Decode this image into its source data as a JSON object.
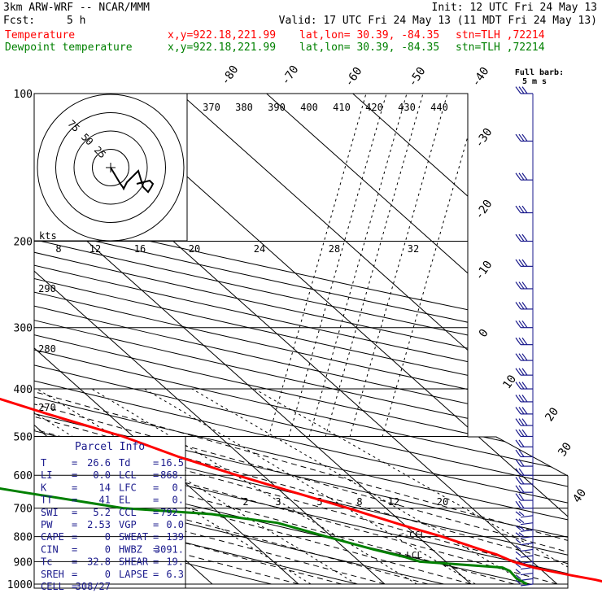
{
  "header": {
    "model": "3km ARW-WRF -- NCAR/MMM",
    "init": "Init: 12 UTC Fri 24 May 13",
    "fcst_label": "Fcst:",
    "fcst_value": "5 h",
    "valid": "Valid: 17 UTC Fri 24 May 13 (11 MDT Fri 24 May 13)",
    "temperature": {
      "label": "Temperature",
      "xy": "x,y=922.18,221.99",
      "latlon": "lat,lon= 30.39, -84.35",
      "stn": "stn=TLH ,72214",
      "color": "#ff0000"
    },
    "dewpoint": {
      "label": "Dewpoint temperature",
      "xy": "x,y=922.18,221.99",
      "latlon": "lat,lon= 30.39, -84.35",
      "stn": "stn=TLH ,72214",
      "color": "#008000"
    }
  },
  "barb_legend": {
    "line1": "Full barb:",
    "line2": "5 m s"
  },
  "hodograph": {
    "ring_labels": [
      "25",
      "50",
      "75"
    ],
    "units_label": "kts"
  },
  "parcel_info": {
    "title": "Parcel Info",
    "rows": [
      [
        "T",
        "=",
        "26.6",
        "Td",
        "=",
        "16.5"
      ],
      [
        "LI",
        "=",
        "0.0",
        "LCL",
        "=",
        "868."
      ],
      [
        "K",
        "=",
        "14",
        "LFC",
        "=",
        "0."
      ],
      [
        "TT",
        "=",
        "41",
        "EL",
        "=",
        "0."
      ],
      [
        "SWI",
        "=",
        "5.2",
        "CCL",
        "=",
        "792."
      ],
      [
        "PW",
        "=",
        "2.53",
        "VGP",
        "=",
        "0.0"
      ],
      [
        "CAPE",
        "=",
        "0",
        "SWEAT",
        "=",
        "139"
      ],
      [
        "CIN",
        "=",
        "0",
        "HWBZ",
        "=",
        "3091."
      ],
      [
        "Tc",
        "=",
        "32.8",
        "SHEAR",
        "=",
        "19."
      ],
      [
        "SREH",
        "=",
        "0",
        "LAPSE",
        "=",
        "6.3"
      ],
      [
        "CELL",
        "=",
        "308/27",
        "",
        "",
        ""
      ]
    ]
  },
  "chart_data": {
    "type": "line",
    "subtype": "skew-T log-P",
    "y_axis": {
      "label": "",
      "scale": "log",
      "range": [
        1000,
        100
      ],
      "ticks": [
        100,
        200,
        300,
        400,
        500,
        600,
        700,
        800,
        900,
        1000
      ]
    },
    "isotherm_labels": [
      -80,
      -70,
      -60,
      -50,
      -40,
      -30,
      -20,
      -10,
      0,
      10,
      20,
      30,
      40
    ],
    "theta_labels": [
      370,
      380,
      390,
      400,
      410,
      420,
      430,
      440
    ],
    "dry_adiabat_labels": [
      290,
      280,
      270
    ],
    "mixing_ratio_labels_upper": [
      8,
      12,
      16,
      20,
      24,
      28,
      32
    ],
    "mixing_ratio_labels_lower": [
      2,
      3,
      5,
      8,
      12,
      20
    ],
    "annotations": {
      "ccl": "<-CCL",
      "lcl": "<-LCL"
    },
    "series": [
      {
        "name": "Temperature",
        "color": "#ff0000",
        "points": [
          [
            1000,
            26.6
          ],
          [
            980,
            25.0
          ],
          [
            960,
            22.8
          ],
          [
            940,
            20.8
          ],
          [
            925,
            19.4
          ],
          [
            900,
            17.8
          ],
          [
            870,
            16.8
          ],
          [
            850,
            15.6
          ],
          [
            800,
            12.8
          ],
          [
            760,
            9.8
          ],
          [
            700,
            5.6
          ],
          [
            650,
            1.4
          ],
          [
            600,
            -3.0
          ],
          [
            550,
            -7.4
          ],
          [
            500,
            -11.2
          ],
          [
            450,
            -17.0
          ],
          [
            400,
            -23.0
          ],
          [
            350,
            -30.6
          ],
          [
            300,
            -38.4
          ],
          [
            250,
            -47.6
          ],
          [
            200,
            -56.0
          ],
          [
            175,
            -60.0
          ],
          [
            150,
            -62.5
          ],
          [
            125,
            -63.0
          ],
          [
            112,
            -62.0
          ],
          [
            100,
            -58.5
          ]
        ]
      },
      {
        "name": "Dewpoint temperature",
        "color": "#008000",
        "points": [
          [
            1000,
            16.5
          ],
          [
            975,
            16.0
          ],
          [
            940,
            16.2
          ],
          [
            925,
            15.8
          ],
          [
            900,
            7.0
          ],
          [
            880,
            5.8
          ],
          [
            850,
            3.2
          ],
          [
            800,
            -0.6
          ],
          [
            750,
            -4.5
          ],
          [
            720,
            -11.0
          ],
          [
            700,
            -20.5
          ],
          [
            650,
            -30.0
          ],
          [
            620,
            -35.8
          ],
          [
            600,
            -33.6
          ],
          [
            550,
            -33.0
          ],
          [
            500,
            -30.6
          ],
          [
            470,
            -32.0
          ],
          [
            450,
            -28.0
          ],
          [
            420,
            -25.0
          ],
          [
            400,
            -21.0
          ],
          [
            375,
            -19.6
          ],
          [
            350,
            -24.0
          ],
          [
            300,
            -38.0
          ],
          [
            260,
            -53.5
          ],
          [
            240,
            -58.0
          ],
          [
            200,
            -68.0
          ],
          [
            180,
            -74.0
          ],
          [
            150,
            -82.0
          ],
          [
            125,
            -88.5
          ],
          [
            110,
            -93.0
          ],
          [
            100,
            -96.0
          ]
        ]
      }
    ],
    "hodograph_points": [
      [
        0.0,
        0.0
      ],
      [
        -4.3,
        -2.5
      ],
      [
        -4.9,
        -3.0
      ],
      [
        -5.2,
        -2.7
      ],
      [
        -5.5,
        -3.0
      ],
      [
        -6.3,
        -2.9
      ],
      [
        -7.4,
        -3.7
      ],
      [
        -8.7,
        -3.8
      ],
      [
        -9.1,
        -3.5
      ],
      [
        -9.8,
        -3.9
      ],
      [
        -8.4,
        -2.7
      ],
      [
        -7.6,
        -2.4
      ],
      [
        -6.5,
        -2.1
      ],
      [
        -6.1,
        -2.3
      ],
      [
        -5.8,
        -1.9
      ],
      [
        -4.7,
        -1.5
      ],
      [
        -3.4,
        -1.1
      ]
    ]
  }
}
